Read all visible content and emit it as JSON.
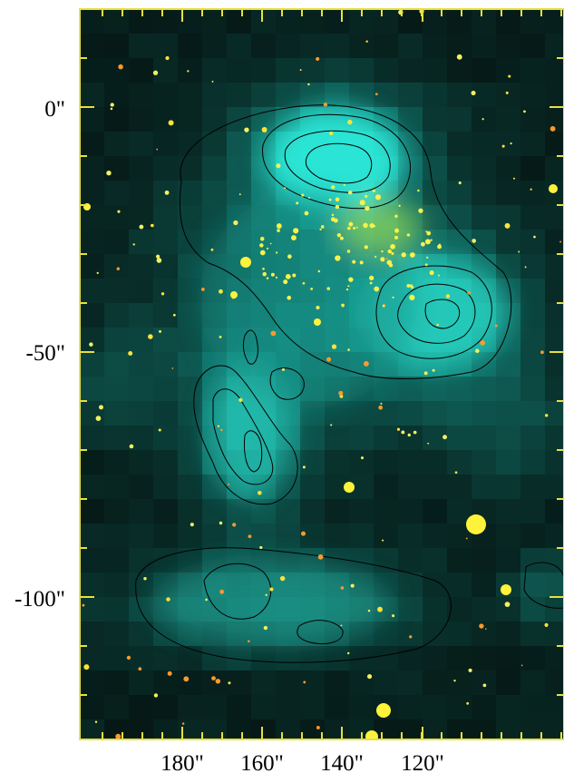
{
  "figure": {
    "y_axis_labels": [
      "0\"",
      "-50\"",
      "-100\""
    ],
    "x_axis_labels": [
      "180\"",
      "160\"",
      "140\"",
      "120\""
    ],
    "frame_color": "#e8e040",
    "colors": {
      "background": "#020806",
      "nebula": "#1a8a80",
      "nebula_bright": "#33ffee",
      "stars": "#ffee22",
      "contours": "#000000"
    }
  }
}
